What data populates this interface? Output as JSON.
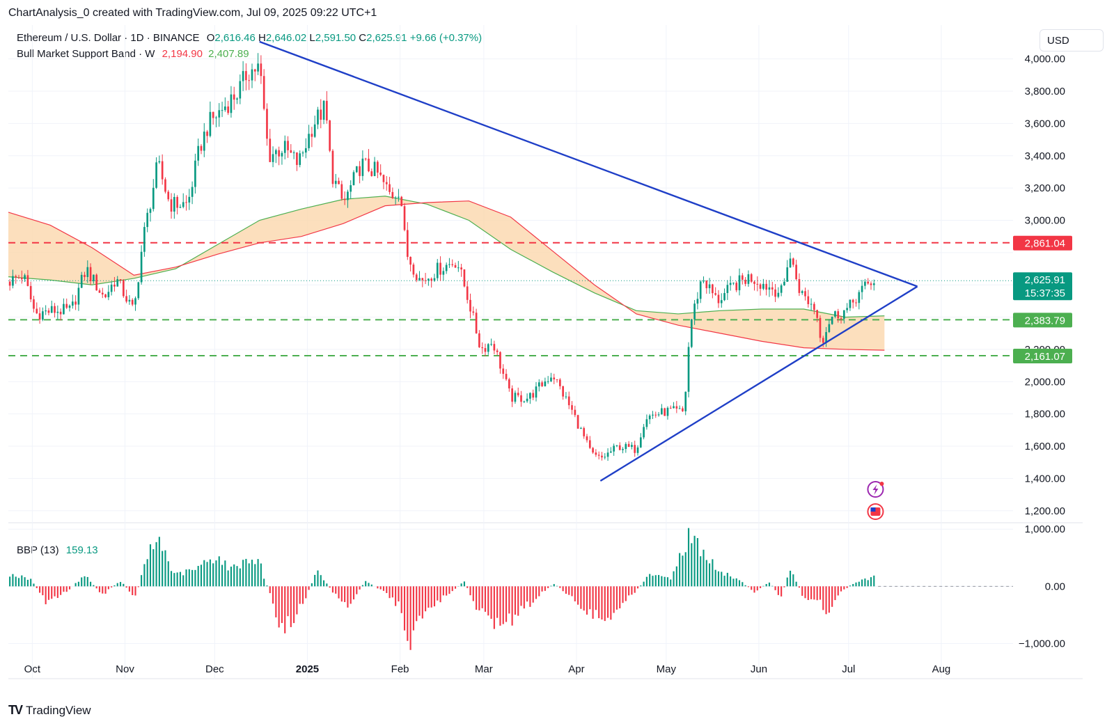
{
  "header": {
    "attribution": "ChartAnalysis_0 created with TradingView.com, Jul 09, 2025 09:22 UTC+1"
  },
  "legend": {
    "symbol": "Ethereum / U.S. Dollar · 1D · BINANCE",
    "open_label": "O",
    "open": "2,616.46",
    "high_label": "H",
    "high": "2,646.02",
    "low_label": "L",
    "low": "2,591.50",
    "close_label": "C",
    "close": "2,625.91",
    "change": "+9.66 (+0.37%)",
    "indicator": "Bull Market Support Band · W",
    "band_lower": "2,194.90",
    "band_upper": "2,407.89",
    "osc_name": "BBP (13)",
    "osc_value": "159.13"
  },
  "currency_button": "USD",
  "footer": {
    "brand": "TradingView",
    "logo": "TV"
  },
  "colors": {
    "up": "#089981",
    "down": "#f23645",
    "trend": "#1f3fc7",
    "band_fill": "#fbd7ad",
    "band_upper": "#4caf50",
    "band_lower": "#f23645",
    "resistance": "#f23645",
    "support": "#4caf50"
  },
  "chart_data": {
    "type": "candlestick",
    "price_axis": {
      "ylim": [
        1130,
        4210
      ],
      "ticks": [
        1200,
        1400,
        1600,
        1800,
        2000,
        2200,
        2400,
        2600,
        2800,
        3000,
        3200,
        3400,
        3600,
        3800,
        4000
      ],
      "tick_labels": [
        "1,200.00",
        "1,400.00",
        "1,600.00",
        "1,800.00",
        "2,000.00",
        "2,200.00",
        "",
        "",
        "",
        "3,000.00",
        "3,200.00",
        "3,400.00",
        "3,600.00",
        "3,800.00",
        "4,000.00"
      ]
    },
    "time_axis": {
      "labels": [
        {
          "date": "2024-10-01",
          "text": "Oct"
        },
        {
          "date": "2024-11-01",
          "text": "Nov"
        },
        {
          "date": "2024-12-01",
          "text": "Dec"
        },
        {
          "date": "2025-01-01",
          "text": "2025"
        },
        {
          "date": "2025-02-01",
          "text": "Feb"
        },
        {
          "date": "2025-03-01",
          "text": "Mar"
        },
        {
          "date": "2025-04-01",
          "text": "Apr"
        },
        {
          "date": "2025-05-01",
          "text": "May"
        },
        {
          "date": "2025-06-01",
          "text": "Jun"
        },
        {
          "date": "2025-07-01",
          "text": "Jul"
        },
        {
          "date": "2025-08-01",
          "text": "Aug"
        }
      ],
      "range": [
        "2024-09-23",
        "2025-08-25"
      ]
    },
    "price_path": [
      [
        "2024-09-23",
        2620
      ],
      [
        "2024-09-28",
        2660
      ],
      [
        "2024-10-02",
        2420
      ],
      [
        "2024-10-08",
        2440
      ],
      [
        "2024-10-14",
        2440
      ],
      [
        "2024-10-19",
        2700
      ],
      [
        "2024-10-25",
        2520
      ],
      [
        "2024-10-29",
        2640
      ],
      [
        "2024-11-04",
        2430
      ],
      [
        "2024-11-07",
        2880
      ],
      [
        "2024-11-12",
        3350
      ],
      [
        "2024-11-16",
        3100
      ],
      [
        "2024-11-22",
        3100
      ],
      [
        "2024-11-26",
        3450
      ],
      [
        "2024-11-29",
        3600
      ],
      [
        "2024-12-04",
        3700
      ],
      [
        "2024-12-09",
        3800
      ],
      [
        "2024-12-12",
        3920
      ],
      [
        "2024-12-16",
        3950
      ],
      [
        "2024-12-19",
        3400
      ],
      [
        "2024-12-24",
        3450
      ],
      [
        "2024-12-29",
        3350
      ],
      [
        "2025-01-03",
        3600
      ],
      [
        "2025-01-07",
        3700
      ],
      [
        "2025-01-09",
        3300
      ],
      [
        "2025-01-13",
        3100
      ],
      [
        "2025-01-19",
        3350
      ],
      [
        "2025-01-24",
        3300
      ],
      [
        "2025-01-29",
        3150
      ],
      [
        "2025-02-01",
        3200
      ],
      [
        "2025-02-03",
        2800
      ],
      [
        "2025-02-08",
        2620
      ],
      [
        "2025-02-14",
        2700
      ],
      [
        "2025-02-20",
        2750
      ],
      [
        "2025-02-24",
        2500
      ],
      [
        "2025-02-28",
        2200
      ],
      [
        "2025-03-04",
        2250
      ],
      [
        "2025-03-10",
        1900
      ],
      [
        "2025-03-16",
        1900
      ],
      [
        "2025-03-24",
        2050
      ],
      [
        "2025-03-31",
        1800
      ],
      [
        "2025-04-06",
        1550
      ],
      [
        "2025-04-09",
        1520
      ],
      [
        "2025-04-15",
        1600
      ],
      [
        "2025-04-21",
        1580
      ],
      [
        "2025-04-24",
        1780
      ],
      [
        "2025-05-02",
        1820
      ],
      [
        "2025-05-07",
        1810
      ],
      [
        "2025-05-09",
        2350
      ],
      [
        "2025-05-13",
        2650
      ],
      [
        "2025-05-18",
        2500
      ],
      [
        "2025-05-24",
        2600
      ],
      [
        "2025-05-29",
        2650
      ],
      [
        "2025-06-03",
        2600
      ],
      [
        "2025-06-09",
        2550
      ],
      [
        "2025-06-11",
        2800
      ],
      [
        "2025-06-15",
        2550
      ],
      [
        "2025-06-20",
        2450
      ],
      [
        "2025-06-22",
        2250
      ],
      [
        "2025-06-25",
        2400
      ],
      [
        "2025-07-01",
        2450
      ],
      [
        "2025-07-04",
        2540
      ],
      [
        "2025-07-09",
        2626
      ]
    ],
    "bull_market_support_band": {
      "upper_sma": [
        [
          "2024-09-23",
          2650
        ],
        [
          "2024-10-07",
          2630
        ],
        [
          "2024-10-21",
          2600
        ],
        [
          "2024-11-04",
          2640
        ],
        [
          "2024-11-18",
          2700
        ],
        [
          "2024-12-02",
          2850
        ],
        [
          "2024-12-16",
          3000
        ],
        [
          "2024-12-30",
          3070
        ],
        [
          "2025-01-13",
          3130
        ],
        [
          "2025-01-27",
          3150
        ],
        [
          "2025-02-10",
          3100
        ],
        [
          "2025-02-24",
          3000
        ],
        [
          "2025-03-10",
          2820
        ],
        [
          "2025-03-24",
          2680
        ],
        [
          "2025-04-07",
          2550
        ],
        [
          "2025-04-21",
          2440
        ],
        [
          "2025-05-05",
          2420
        ],
        [
          "2025-05-19",
          2440
        ],
        [
          "2025-06-02",
          2450
        ],
        [
          "2025-06-16",
          2450
        ],
        [
          "2025-06-30",
          2400
        ],
        [
          "2025-07-13",
          2408
        ]
      ],
      "lower_ema": [
        [
          "2024-09-23",
          3050
        ],
        [
          "2024-10-07",
          2970
        ],
        [
          "2024-10-21",
          2830
        ],
        [
          "2024-11-04",
          2660
        ],
        [
          "2024-11-18",
          2710
        ],
        [
          "2024-12-02",
          2790
        ],
        [
          "2024-12-16",
          2860
        ],
        [
          "2024-12-30",
          2900
        ],
        [
          "2025-01-13",
          2980
        ],
        [
          "2025-01-27",
          3090
        ],
        [
          "2025-02-10",
          3110
        ],
        [
          "2025-02-24",
          3120
        ],
        [
          "2025-03-10",
          3020
        ],
        [
          "2025-03-24",
          2810
        ],
        [
          "2025-04-07",
          2600
        ],
        [
          "2025-04-21",
          2420
        ],
        [
          "2025-05-05",
          2350
        ],
        [
          "2025-05-19",
          2300
        ],
        [
          "2025-06-02",
          2250
        ],
        [
          "2025-06-16",
          2210
        ],
        [
          "2025-06-30",
          2200
        ],
        [
          "2025-07-13",
          2195
        ]
      ]
    },
    "trendlines": [
      {
        "name": "upper",
        "from": [
          "2024-12-16",
          4107
        ],
        "to": [
          "2025-07-24",
          2590
        ]
      },
      {
        "name": "lower",
        "from": [
          "2025-04-09",
          1385
        ],
        "to": [
          "2025-07-24",
          2590
        ]
      }
    ],
    "horizontal_levels": [
      {
        "price": 2861.04,
        "label": "2,861.04",
        "color": "#f23645"
      },
      {
        "price": 2383.79,
        "label": "2,383.79",
        "color": "#4caf50"
      },
      {
        "price": 2161.07,
        "label": "2,161.07",
        "color": "#4caf50"
      }
    ],
    "last_price": {
      "price": 2625.91,
      "label": "2,625.91",
      "countdown": "15:37:35"
    },
    "oscillator": {
      "name": "BBP (13)",
      "ylim": [
        -1250,
        1100
      ],
      "ticks": [
        1000,
        0,
        -1000
      ],
      "tick_labels": [
        "1,000.00",
        "0.00",
        "−1,000.00"
      ],
      "path": [
        [
          "2024-09-23",
          220
        ],
        [
          "2024-09-30",
          120
        ],
        [
          "2024-10-05",
          -280
        ],
        [
          "2024-10-12",
          -100
        ],
        [
          "2024-10-18",
          200
        ],
        [
          "2024-10-24",
          -150
        ],
        [
          "2024-10-30",
          100
        ],
        [
          "2024-11-04",
          -200
        ],
        [
          "2024-11-08",
          550
        ],
        [
          "2024-11-12",
          850
        ],
        [
          "2024-11-17",
          200
        ],
        [
          "2024-11-24",
          300
        ],
        [
          "2024-12-01",
          550
        ],
        [
          "2024-12-06",
          300
        ],
        [
          "2024-12-10",
          450
        ],
        [
          "2024-12-15",
          500
        ],
        [
          "2024-12-19",
          -150
        ],
        [
          "2024-12-23",
          -850
        ],
        [
          "2024-12-30",
          -300
        ],
        [
          "2025-01-04",
          300
        ],
        [
          "2025-01-09",
          -100
        ],
        [
          "2025-01-14",
          -350
        ],
        [
          "2025-01-20",
          100
        ],
        [
          "2025-01-26",
          -100
        ],
        [
          "2025-02-01",
          -400
        ],
        [
          "2025-02-03",
          -1180
        ],
        [
          "2025-02-08",
          -500
        ],
        [
          "2025-02-16",
          -150
        ],
        [
          "2025-02-22",
          80
        ],
        [
          "2025-02-26",
          -350
        ],
        [
          "2025-03-04",
          -650
        ],
        [
          "2025-03-10",
          -600
        ],
        [
          "2025-03-18",
          -200
        ],
        [
          "2025-03-24",
          50
        ],
        [
          "2025-03-31",
          -250
        ],
        [
          "2025-04-07",
          -550
        ],
        [
          "2025-04-12",
          -500
        ],
        [
          "2025-04-20",
          -100
        ],
        [
          "2025-04-25",
          200
        ],
        [
          "2025-05-02",
          150
        ],
        [
          "2025-05-08",
          900
        ],
        [
          "2025-05-12",
          700
        ],
        [
          "2025-05-18",
          250
        ],
        [
          "2025-05-24",
          150
        ],
        [
          "2025-05-30",
          -100
        ],
        [
          "2025-06-04",
          80
        ],
        [
          "2025-06-08",
          -200
        ],
        [
          "2025-06-11",
          350
        ],
        [
          "2025-06-15",
          -150
        ],
        [
          "2025-06-21",
          -300
        ],
        [
          "2025-06-23",
          -500
        ],
        [
          "2025-06-28",
          -100
        ],
        [
          "2025-07-02",
          50
        ],
        [
          "2025-07-05",
          100
        ],
        [
          "2025-07-09",
          159
        ]
      ]
    }
  }
}
